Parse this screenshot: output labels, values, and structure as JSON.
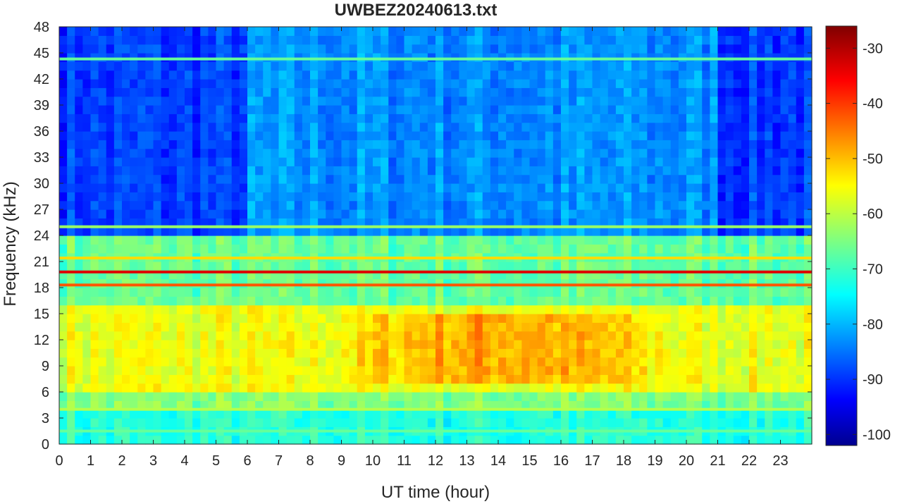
{
  "chart_data": {
    "type": "heatmap",
    "title": "UWBEZ20240613.txt",
    "xlabel": "UT time (hour)",
    "ylabel": "Frequency (kHz)",
    "xlim": [
      0,
      24
    ],
    "ylim": [
      0,
      48
    ],
    "x_ticks": [
      "0",
      "1",
      "2",
      "3",
      "4",
      "5",
      "6",
      "7",
      "8",
      "9",
      "10",
      "11",
      "12",
      "13",
      "14",
      "15",
      "16",
      "17",
      "18",
      "19",
      "20",
      "21",
      "22",
      "23"
    ],
    "y_ticks": [
      "0",
      "3",
      "6",
      "9",
      "12",
      "15",
      "18",
      "21",
      "24",
      "27",
      "30",
      "33",
      "36",
      "39",
      "42",
      "45",
      "48"
    ],
    "colorbar": {
      "colormap": "jet",
      "range": [
        -102,
        -26
      ],
      "ticks": [
        "-30",
        "-40",
        "-50",
        "-60",
        "-70",
        "-80",
        "-90",
        "-100"
      ]
    },
    "colormap_stops": [
      "#00008f",
      "#0000ff",
      "#00ffff",
      "#ffff00",
      "#ff0000",
      "#800000"
    ],
    "background_levels": [
      {
        "freq_khz": [
          0,
          4
        ],
        "level_db": -71
      },
      {
        "freq_khz": [
          4,
          6
        ],
        "level_db": -64
      },
      {
        "freq_khz": [
          6,
          16
        ],
        "level_db": -56
      },
      {
        "freq_khz": [
          16,
          24
        ],
        "level_db": -66
      },
      {
        "freq_khz": [
          24,
          48
        ],
        "level_db": -82
      }
    ],
    "daytime_enhancement": {
      "hours": [
        8,
        20
      ],
      "freq_khz": [
        7,
        15
      ],
      "peak_level_db": -47
    },
    "narrowband_lines": [
      {
        "freq_khz": 19.8,
        "level_db": -33
      },
      {
        "freq_khz": 18.3,
        "level_db": -42
      },
      {
        "freq_khz": 21.4,
        "level_db": -52
      },
      {
        "freq_khz": 25.0,
        "level_db": -62
      },
      {
        "freq_khz": 44.3,
        "level_db": -66
      },
      {
        "freq_khz": 4.0,
        "level_db": -60
      },
      {
        "freq_khz": 1.5,
        "level_db": -66
      }
    ]
  }
}
